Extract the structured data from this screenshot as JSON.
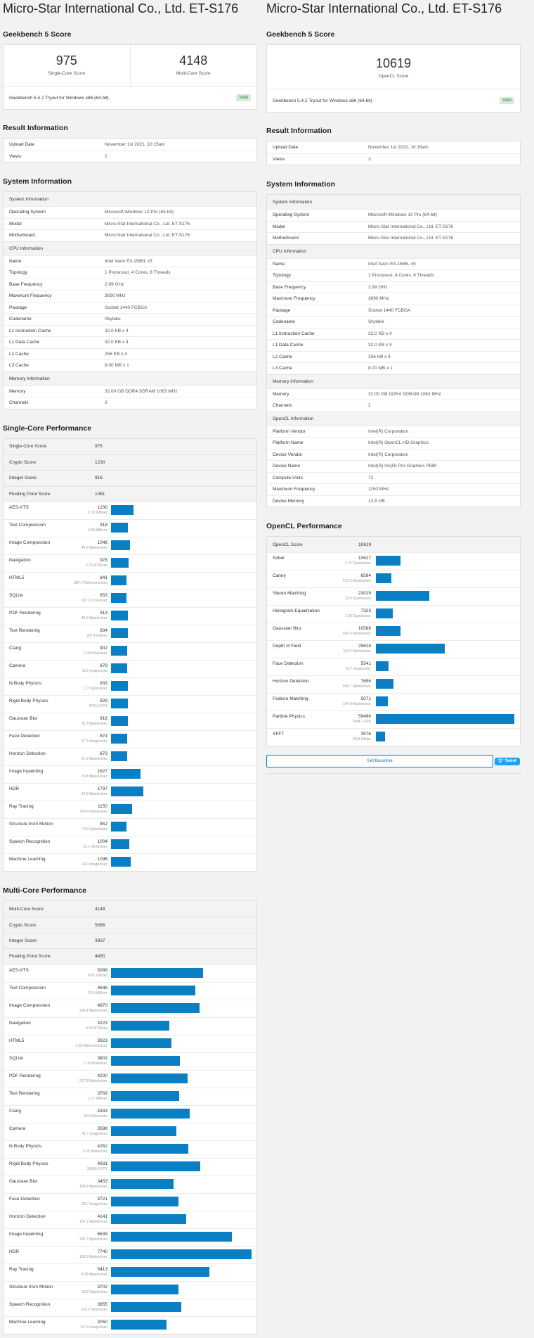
{
  "left": {
    "title": "Micro-Star International Co., Ltd. ET-S176",
    "gb_heading": "Geekbench 5 Score",
    "scores": [
      {
        "value": "975",
        "label": "Single-Core Score"
      },
      {
        "value": "4148",
        "label": "Multi-Core Score"
      }
    ],
    "version": "Geekbench 5.4.2 Tryout for Windows x86 (64-bit)",
    "valid": "Valid",
    "result_heading": "Result Information",
    "result": [
      {
        "k": "Upload Date",
        "v": "November 1st 2021, 10:15am"
      },
      {
        "k": "Views",
        "v": "2"
      }
    ],
    "system_heading": "System Information",
    "system": [
      {
        "header": "System Information"
      },
      {
        "k": "Operating System",
        "v": "Microsoft Windows 10 Pro (64-bit)"
      },
      {
        "k": "Model",
        "v": "Micro-Star International Co., Ltd. ET-S176"
      },
      {
        "k": "Motherboard",
        "v": "Micro-Star International Co., Ltd. ET-S176"
      },
      {
        "header": "CPU Information"
      },
      {
        "k": "Name",
        "v": "Intel Xeon E3-1585L v5"
      },
      {
        "k": "Topology",
        "v": "1 Processor, 4 Cores, 8 Threads"
      },
      {
        "k": "Base Frequency",
        "v": "2.99 GHz"
      },
      {
        "k": "Maximum Frequency",
        "v": "3690 MHz"
      },
      {
        "k": "Package",
        "v": "Socket 1440 FCBGA"
      },
      {
        "k": "Codename",
        "v": "Skylake"
      },
      {
        "k": "L1 Instruction Cache",
        "v": "32.0 KB x 4"
      },
      {
        "k": "L1 Data Cache",
        "v": "32.0 KB x 4"
      },
      {
        "k": "L2 Cache",
        "v": "256 KB x 4"
      },
      {
        "k": "L3 Cache",
        "v": "8.00 MB x 1"
      },
      {
        "header": "Memory Information"
      },
      {
        "k": "Memory",
        "v": "32.00 GB DDR4 SDRAM 1063 MHz"
      },
      {
        "k": "Channels",
        "v": "2"
      }
    ],
    "single_heading": "Single-Core Performance",
    "single_summary": [
      {
        "k": "Single-Core Score",
        "v": "975"
      },
      {
        "k": "Crypto Score",
        "v": "1230"
      },
      {
        "k": "Integer Score",
        "v": "916"
      },
      {
        "k": "Floating Point Score",
        "v": "1061"
      }
    ],
    "single_max": 7740,
    "single": [
      {
        "name": "AES-XTS",
        "score": 1230,
        "sub": "2.10 GB/sec"
      },
      {
        "name": "Text Compression",
        "score": 918,
        "sub": "4.64 MB/sec"
      },
      {
        "name": "Image Compression",
        "score": 1046,
        "sub": "49.5 Mpixels/sec"
      },
      {
        "name": "Navigation",
        "score": 978,
        "sub": "2.76 MTE/sec"
      },
      {
        "name": "HTML5",
        "score": 841,
        "sub": "987.7 KElements/sec"
      },
      {
        "name": "SQLite",
        "score": 853,
        "sub": "267.1 Krows/sec"
      },
      {
        "name": "PDF Rendering",
        "score": 913,
        "sub": "49.5 Mpixels/sec"
      },
      {
        "name": "Text Rendering",
        "score": 934,
        "sub": "297.4 KB/sec"
      },
      {
        "name": "Clang",
        "score": 902,
        "sub": "7.03 Klines/sec"
      },
      {
        "name": "Camera",
        "score": 879,
        "sub": "10.2 images/sec"
      },
      {
        "name": "N-Body Physics",
        "score": 933,
        "sub": "1.17 Mpairs/sec"
      },
      {
        "name": "Rigid Body Physics",
        "score": 929,
        "sub": "5753.5 FPS"
      },
      {
        "name": "Gaussian Blur",
        "score": 916,
        "sub": "50.3 Mpixels/sec"
      },
      {
        "name": "Face Detection",
        "score": 874,
        "sub": "6.73 images/sec"
      },
      {
        "name": "Horizon Detection",
        "score": 873,
        "sub": "21.5 Mpixels/sec"
      },
      {
        "name": "Image Inpainting",
        "score": 1627,
        "sub": "79.8 Mpixels/sec"
      },
      {
        "name": "HDR",
        "score": 1797,
        "sub": "24.5 Mpixels/sec"
      },
      {
        "name": "Ray Tracing",
        "score": 1150,
        "sub": "923.4 Kpixels/sec"
      },
      {
        "name": "Structure from Motion",
        "score": 852,
        "sub": "7.63 Kpixels/sec"
      },
      {
        "name": "Speech Recognition",
        "score": 1004,
        "sub": "32.1 Words/sec"
      },
      {
        "name": "Machine Learning",
        "score": 1096,
        "sub": "42.4 images/sec"
      }
    ],
    "multi_heading": "Multi-Core Performance",
    "multi_summary": [
      {
        "k": "Multi-Core Score",
        "v": "4148"
      },
      {
        "k": "Crypto Score",
        "v": "5086"
      },
      {
        "k": "Integer Score",
        "v": "3937"
      },
      {
        "k": "Floating Point Score",
        "v": "4450"
      }
    ],
    "multi": [
      {
        "name": "AES-XTS",
        "score": 5086,
        "sub": "8.67 GB/sec"
      },
      {
        "name": "Text Compression",
        "score": 4646,
        "sub": "23.6 MB/sec"
      },
      {
        "name": "Image Compression",
        "score": 4870,
        "sub": "230.4 Mpixels/sec"
      },
      {
        "name": "Navigation",
        "score": 3223,
        "sub": "9.09 MTE/sec"
      },
      {
        "name": "HTML5",
        "score": 3323,
        "sub": "3.90 MElements/sec"
      },
      {
        "name": "SQLite",
        "score": 3802,
        "sub": "1.19 Mrows/sec"
      },
      {
        "name": "PDF Rendering",
        "score": 4200,
        "sub": "227.9 Mpixels/sec"
      },
      {
        "name": "Text Rendering",
        "score": 3769,
        "sub": "1.17 MB/sec"
      },
      {
        "name": "Clang",
        "score": 4333,
        "sub": "33.8 Klines/sec"
      },
      {
        "name": "Camera",
        "score": 3598,
        "sub": "41.7 images/sec"
      },
      {
        "name": "N-Body Physics",
        "score": 4262,
        "sub": "5.33 Mpairs/sec"
      },
      {
        "name": "Rigid Body Physics",
        "score": 4931,
        "sub": "30549.2 FPS"
      },
      {
        "name": "Gaussian Blur",
        "score": 3453,
        "sub": "189.6 Mpixels/sec"
      },
      {
        "name": "Face Detection",
        "score": 3721,
        "sub": "28.7 images/sec"
      },
      {
        "name": "Horizon Detection",
        "score": 4141,
        "sub": "102.1 Mpixels/sec"
      },
      {
        "name": "Image Inpainting",
        "score": 6639,
        "sub": "325.7 Mpixels/sec"
      },
      {
        "name": "HDR",
        "score": 7740,
        "sub": "105.5 Mpixels/sec"
      },
      {
        "name": "Ray Tracing",
        "score": 5413,
        "sub": "4.35 Mpixels/sec"
      },
      {
        "name": "Structure from Motion",
        "score": 3702,
        "sub": "33.2 Kpixels/sec"
      },
      {
        "name": "Speech Recognition",
        "score": 3855,
        "sub": "123.2 Words/sec"
      },
      {
        "name": "Machine Learning",
        "score": 3050,
        "sub": "117.9 images/sec"
      }
    ]
  },
  "right": {
    "title": "Micro-Star International Co., Ltd. ET-S176",
    "gb_heading": "Geekbench 5 Score",
    "score": {
      "value": "10619",
      "label": "OpenCL Score"
    },
    "version": "Geekbench 5.4.2 Tryout for Windows x86 (64-bit)",
    "valid": "Valid",
    "result_heading": "Result Information",
    "result": [
      {
        "k": "Upload Date",
        "v": "November 1st 2021, 10:16am"
      },
      {
        "k": "Views",
        "v": "3"
      }
    ],
    "system_heading": "System Information",
    "system": [
      {
        "header": "System Information"
      },
      {
        "k": "Operating System",
        "v": "Microsoft Windows 10 Pro (64-bit)"
      },
      {
        "k": "Model",
        "v": "Micro-Star International Co., Ltd. ET-S176"
      },
      {
        "k": "Motherboard",
        "v": "Micro-Star International Co., Ltd. ET-S176"
      },
      {
        "header": "CPU Information"
      },
      {
        "k": "Name",
        "v": "Intel Xeon E3-1585L v5"
      },
      {
        "k": "Topology",
        "v": "1 Processor, 4 Cores, 8 Threads"
      },
      {
        "k": "Base Frequency",
        "v": "2.99 GHz"
      },
      {
        "k": "Maximum Frequency",
        "v": "3690 MHz"
      },
      {
        "k": "Package",
        "v": "Socket 1440 FCBGA"
      },
      {
        "k": "Codename",
        "v": "Skylake"
      },
      {
        "k": "L1 Instruction Cache",
        "v": "32.0 KB x 4"
      },
      {
        "k": "L1 Data Cache",
        "v": "32.0 KB x 4"
      },
      {
        "k": "L2 Cache",
        "v": "256 KB x 4"
      },
      {
        "k": "L3 Cache",
        "v": "8.00 MB x 1"
      },
      {
        "header": "Memory Information"
      },
      {
        "k": "Memory",
        "v": "32.00 GB DDR4 SDRAM 1063 MHz"
      },
      {
        "k": "Channels",
        "v": "2"
      },
      {
        "header": "OpenCL Information"
      },
      {
        "k": "Platform Vendor",
        "v": "Intel(R) Corporation"
      },
      {
        "k": "Platform Name",
        "v": "Intel(R) OpenCL HD Graphics"
      },
      {
        "k": "Device Vendor",
        "v": "Intel(R) Corporation"
      },
      {
        "k": "Device Name",
        "v": "Intel(R) Iris(R) Pro Graphics P580"
      },
      {
        "k": "Compute Units",
        "v": "72"
      },
      {
        "k": "Maximum Frequency",
        "v": "1150 MHz"
      },
      {
        "k": "Device Memory",
        "v": "12.8 GB"
      }
    ],
    "opencl_heading": "OpenCL Performance",
    "opencl_summary": [
      {
        "k": "OpenCL Score",
        "v": "10619"
      }
    ],
    "opencl_max": 59496,
    "opencl": [
      {
        "name": "Sobel",
        "score": 10627,
        "sub": "2.75 Gpixels/sec"
      },
      {
        "name": "Canny",
        "score": 6594,
        "sub": "412.0 Mpixels/sec"
      },
      {
        "name": "Stereo Matching",
        "score": 23029,
        "sub": "33.4 Gpixels/sec"
      },
      {
        "name": "Histogram Equalization",
        "score": 7323,
        "sub": "1.29 Gpixels/sec"
      },
      {
        "name": "Gaussian Blur",
        "score": 10588,
        "sub": "562.0 Mpixels/sec"
      },
      {
        "name": "Depth of Field",
        "score": 29628,
        "sub": "343.5 Mpixels/sec"
      },
      {
        "name": "Face Detection",
        "score": 5541,
        "sub": "42.7 images/sec"
      },
      {
        "name": "Horizon Detection",
        "score": 7656,
        "sub": "555.7 Mpixels/sec"
      },
      {
        "name": "Feature Matching",
        "score": 5071,
        "sub": "104.9 Mpixels/sec"
      },
      {
        "name": "Particle Physics",
        "score": 59496,
        "sub": "1584.7 FPS"
      },
      {
        "name": "SFFT",
        "score": 3976,
        "sub": "64.8 Gflops"
      }
    ],
    "baseline_btn": "Set Baseline",
    "tweet_btn": "Tweet"
  }
}
